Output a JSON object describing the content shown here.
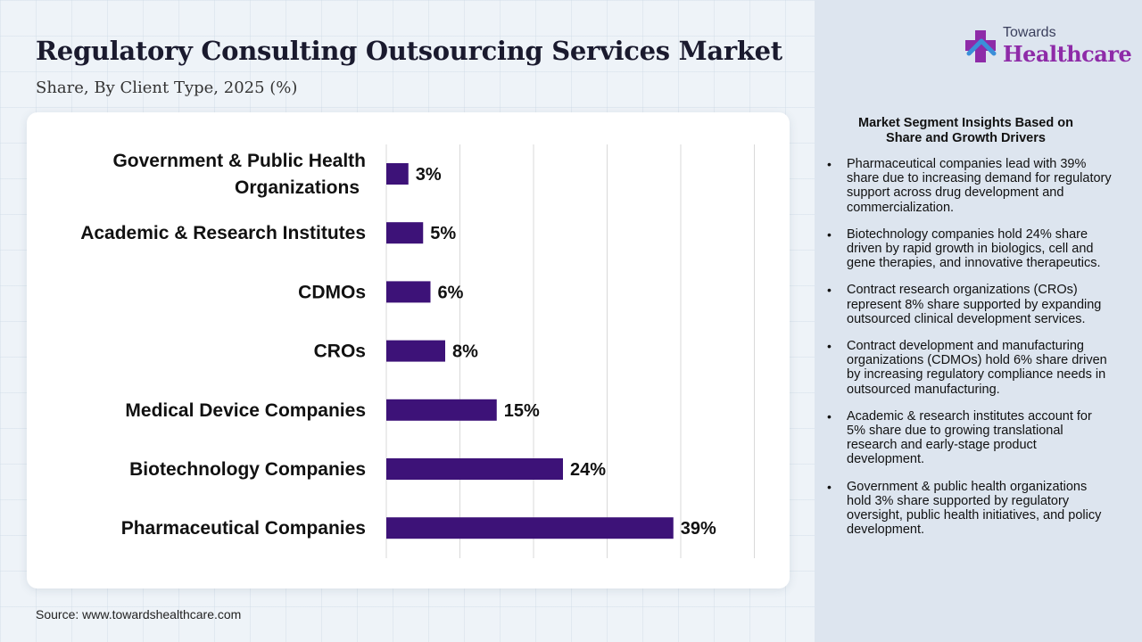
{
  "header": {
    "title": "Regulatory Consulting Outsourcing Services Market",
    "subtitle": "Share, By Client Type, 2025 (%)"
  },
  "logo": {
    "top": "Towards",
    "main": "Healthcare"
  },
  "source": "Source: www.towardshealthcare.com",
  "colors": {
    "bar": "#3d1278",
    "grid": "#d9d9d9",
    "panel": "#dde5ef"
  },
  "chart_data": {
    "type": "bar",
    "orientation": "horizontal",
    "categories": [
      "Government & Public Health Organizations",
      "Academic & Research Institutes",
      "CDMOs",
      "CROs",
      "Medical Device Companies",
      "Biotechnology Companies",
      "Pharmaceutical Companies"
    ],
    "values": [
      3,
      5,
      6,
      8,
      15,
      24,
      39
    ],
    "data_labels": [
      "3%",
      "5%",
      "6%",
      "8%",
      "15%",
      "24%",
      "39%"
    ],
    "xlim": [
      0,
      50
    ],
    "grid": true,
    "title": "Regulatory Consulting Outsourcing Services Market",
    "subtitle": "Share, By Client Type, 2025 (%)"
  },
  "insights": {
    "title": "Market Segment Insights Based on Share and Growth Drivers",
    "items": [
      "Pharmaceutical companies lead with 39% share due to increasing demand for regulatory support across drug development and commercialization.",
      "Biotechnology companies hold 24% share driven by rapid growth in biologics, cell and gene therapies, and innovative therapeutics.",
      "Contract research organizations (CROs) represent 8% share supported by expanding outsourced clinical development services.",
      "Contract development and manufacturing organizations (CDMOs) hold 6% share driven by increasing regulatory compliance needs in outsourced manufacturing.",
      "Academic & research institutes account for 5% share due to growing translational research and early-stage product development.",
      "Government & public health organizations hold 3% share supported by regulatory oversight, public health initiatives, and policy development."
    ]
  }
}
